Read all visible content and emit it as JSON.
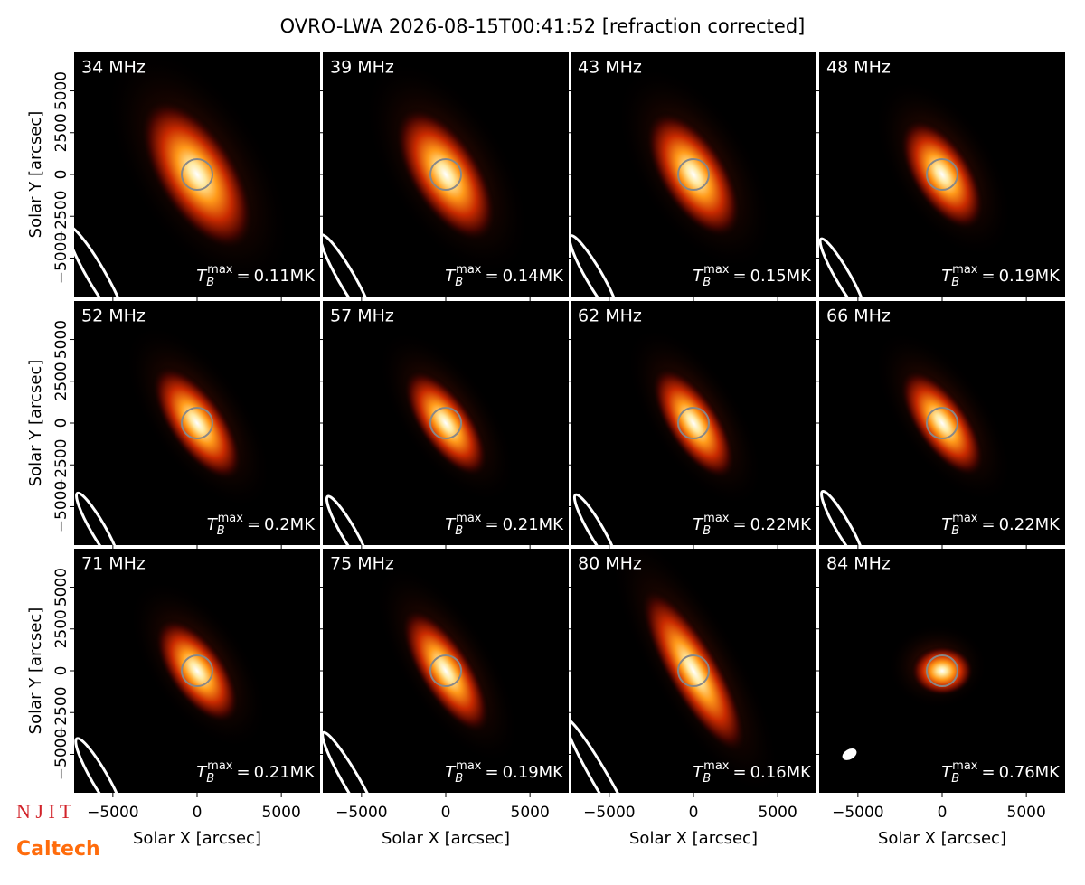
{
  "figure": {
    "title": "OVRO-LWA 2026-08-15T00:41:52 [refraction corrected]",
    "x_label": "Solar X [arcsec]",
    "y_label": "Solar Y [arcsec]",
    "xlim": [
      -7300,
      7300
    ],
    "ylim": [
      -7300,
      7300
    ],
    "xticks": [
      {
        "value": -5000,
        "label": "−5000"
      },
      0,
      5000
    ],
    "yticks": [
      {
        "value": -5000,
        "label": "−5000"
      },
      {
        "value": -2500,
        "label": "−2500"
      },
      0,
      2500,
      5000
    ],
    "tb_symbol": "T",
    "tb_sub": "B",
    "tb_sup": "max",
    "tb_eq": "=",
    "panels": [
      {
        "freq": "34 MHz",
        "tb_max": 0.11,
        "tb_label": "0.11MK"
      },
      {
        "freq": "39 MHz",
        "tb_max": 0.14,
        "tb_label": "0.14MK"
      },
      {
        "freq": "43 MHz",
        "tb_max": 0.15,
        "tb_label": "0.15MK"
      },
      {
        "freq": "48 MHz",
        "tb_max": 0.19,
        "tb_label": "0.19MK"
      },
      {
        "freq": "52 MHz",
        "tb_max": 0.2,
        "tb_label": "0.2MK"
      },
      {
        "freq": "57 MHz",
        "tb_max": 0.21,
        "tb_label": "0.21MK"
      },
      {
        "freq": "62 MHz",
        "tb_max": 0.22,
        "tb_label": "0.22MK"
      },
      {
        "freq": "66 MHz",
        "tb_max": 0.22,
        "tb_label": "0.22MK"
      },
      {
        "freq": "71 MHz",
        "tb_max": 0.21,
        "tb_label": "0.21MK"
      },
      {
        "freq": "75 MHz",
        "tb_max": 0.19,
        "tb_label": "0.19MK"
      },
      {
        "freq": "80 MHz",
        "tb_max": 0.16,
        "tb_label": "0.16MK"
      },
      {
        "freq": "84 MHz",
        "tb_max": 0.76,
        "tb_label": "0.76MK"
      }
    ],
    "logos": [
      "N J I T",
      "Caltech"
    ]
  }
}
